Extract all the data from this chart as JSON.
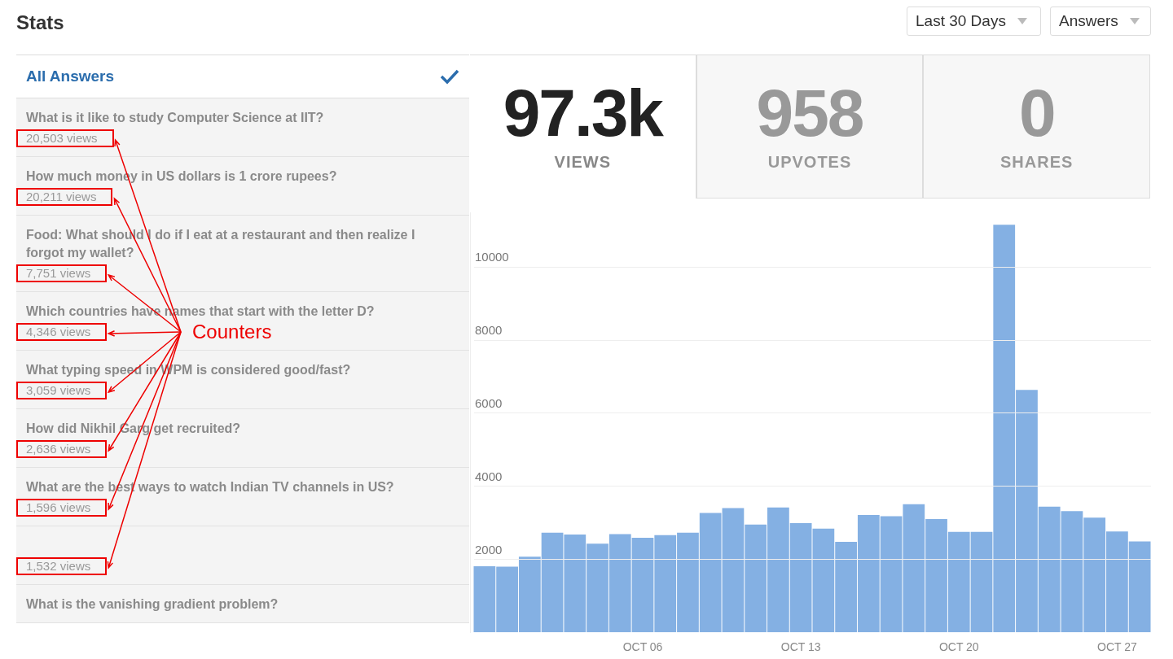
{
  "chart_data": [
    {
      "type": "other",
      "title": "Stats",
      "annotations": [
        "Last 30 Days",
        "Answers"
      ]
    },
    {
      "type": "other",
      "subtitle": "All Answers",
      "categories": [
        "What is it like to study Computer Science at IIT?",
        "How much money in US dollars is 1 crore rupees?",
        "Food: What should I do if I eat at a restaurant and then realize I forgot my wallet?",
        "Which countries have names that start with the letter D?",
        "What typing speed in WPM is considered good/fast?",
        "How did Nikhil Garg get recruited?",
        "What are the best ways to watch Indian TV channels in US?",
        null,
        "What is the vanishing gradient problem?"
      ],
      "value_labels": [
        "20,503 views",
        "20,211 views",
        "7,751 views",
        "4,346 views",
        "3,059 views",
        "2,636 views",
        "1,596 views",
        "1,532 views",
        null
      ],
      "annotations": [
        "Counters"
      ]
    },
    {
      "type": "other",
      "categories": [
        "VIEWS",
        "UPVOTES",
        "SHARES"
      ],
      "value_labels": [
        "97.3k",
        "958",
        "0"
      ]
    },
    {
      "type": "bar",
      "categories": [
        null,
        null,
        null,
        null,
        null,
        null,
        null,
        "OCT 06",
        null,
        null,
        null,
        null,
        null,
        null,
        "OCT 13",
        null,
        null,
        null,
        null,
        null,
        null,
        "OCT 20",
        null,
        null,
        null,
        null,
        null,
        null,
        "OCT 27",
        null
      ],
      "values": [
        1810,
        1800,
        2070,
        2730,
        2680,
        2430,
        2690,
        2590,
        2660,
        2730,
        3270,
        3400,
        2950,
        3420,
        2990,
        2840,
        2480,
        3210,
        3180,
        3510,
        3100,
        2750,
        2750,
        11160,
        6640,
        3440,
        3320,
        3140,
        2760,
        2490
      ],
      "color": "#84b0e3",
      "ylim": [
        0,
        11500
      ],
      "yticks": [
        2000,
        4000,
        6000,
        8000,
        10000
      ],
      "grid": "y"
    }
  ]
}
